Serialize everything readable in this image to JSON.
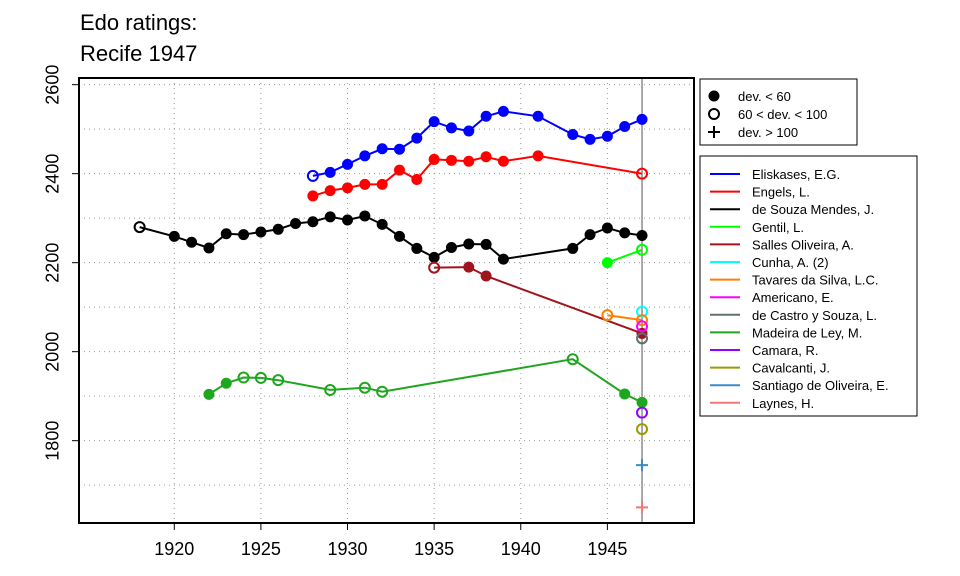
{
  "chart_data": {
    "type": "line",
    "title_lines": [
      "Edo ratings:",
      "Recife 1947"
    ],
    "xlabel": "",
    "ylabel": "",
    "xlim": [
      1914.5,
      1950
    ],
    "ylim": [
      1615,
      2615
    ],
    "x_ticks": [
      1920,
      1925,
      1930,
      1935,
      1940,
      1945
    ],
    "y_ticks": [
      1800,
      2000,
      2200,
      2400,
      2600
    ],
    "grid": true,
    "reference_line_x": 1947,
    "marker_legend": [
      {
        "label": "dev. < 60",
        "marker": "filled"
      },
      {
        "label": "60 < dev. < 100",
        "marker": "open"
      },
      {
        "label": "dev. > 100",
        "marker": "plus"
      }
    ],
    "legend_placement": "right",
    "series": [
      {
        "name": "Eliskases, E.G.",
        "color": "#0000FF",
        "points": [
          [
            1928,
            2395,
            "open"
          ],
          [
            1929,
            2403,
            "filled"
          ],
          [
            1930,
            2421,
            "filled"
          ],
          [
            1931,
            2440,
            "filled"
          ],
          [
            1932,
            2456,
            "filled"
          ],
          [
            1933,
            2455,
            "filled"
          ],
          [
            1934,
            2480,
            "filled"
          ],
          [
            1935,
            2517,
            "filled"
          ],
          [
            1936,
            2503,
            "filled"
          ],
          [
            1937,
            2496,
            "filled"
          ],
          [
            1938,
            2529,
            "filled"
          ],
          [
            1939,
            2540,
            "filled"
          ],
          [
            1941,
            2529,
            "filled"
          ],
          [
            1943,
            2488,
            "filled"
          ],
          [
            1944,
            2477,
            "filled"
          ],
          [
            1945,
            2484,
            "filled"
          ],
          [
            1946,
            2506,
            "filled"
          ],
          [
            1947,
            2522,
            "filled"
          ]
        ]
      },
      {
        "name": "Engels, L.",
        "color": "#FF0000",
        "points": [
          [
            1928,
            2350,
            "filled"
          ],
          [
            1929,
            2362,
            "filled"
          ],
          [
            1930,
            2368,
            "filled"
          ],
          [
            1931,
            2376,
            "filled"
          ],
          [
            1932,
            2376,
            "filled"
          ],
          [
            1933,
            2408,
            "filled"
          ],
          [
            1934,
            2387,
            "filled"
          ],
          [
            1935,
            2432,
            "filled"
          ],
          [
            1936,
            2430,
            "filled"
          ],
          [
            1937,
            2428,
            "filled"
          ],
          [
            1938,
            2438,
            "filled"
          ],
          [
            1939,
            2428,
            "filled"
          ],
          [
            1941,
            2440,
            "filled"
          ],
          [
            1947,
            2400,
            "open"
          ]
        ]
      },
      {
        "name": "de Souza Mendes, J.",
        "color": "#000000",
        "points": [
          [
            1918,
            2280,
            "open"
          ],
          [
            1920,
            2259,
            "filled"
          ],
          [
            1921,
            2246,
            "filled"
          ],
          [
            1922,
            2233,
            "filled"
          ],
          [
            1923,
            2265,
            "filled"
          ],
          [
            1924,
            2263,
            "filled"
          ],
          [
            1925,
            2269,
            "filled"
          ],
          [
            1926,
            2275,
            "filled"
          ],
          [
            1927,
            2288,
            "filled"
          ],
          [
            1928,
            2292,
            "filled"
          ],
          [
            1929,
            2303,
            "filled"
          ],
          [
            1930,
            2296,
            "filled"
          ],
          [
            1931,
            2305,
            "filled"
          ],
          [
            1932,
            2286,
            "filled"
          ],
          [
            1933,
            2259,
            "filled"
          ],
          [
            1934,
            2232,
            "filled"
          ],
          [
            1935,
            2212,
            "filled"
          ],
          [
            1936,
            2234,
            "filled"
          ],
          [
            1937,
            2242,
            "filled"
          ],
          [
            1938,
            2241,
            "filled"
          ],
          [
            1939,
            2208,
            "filled"
          ],
          [
            1943,
            2232,
            "filled"
          ],
          [
            1944,
            2263,
            "filled"
          ],
          [
            1945,
            2278,
            "filled"
          ],
          [
            1946,
            2267,
            "filled"
          ],
          [
            1947,
            2261,
            "filled"
          ]
        ]
      },
      {
        "name": "Gentil, L.",
        "color": "#00FF00",
        "points": [
          [
            1945,
            2200,
            "filled"
          ],
          [
            1947,
            2229,
            "open"
          ]
        ]
      },
      {
        "name": "Salles Oliveira, A.",
        "color": "#A0141E",
        "points": [
          [
            1935,
            2189,
            "open"
          ],
          [
            1937,
            2190,
            "filled"
          ],
          [
            1938,
            2170,
            "filled"
          ],
          [
            1947,
            2041,
            "filled"
          ]
        ]
      },
      {
        "name": "Cunha, A. (2)",
        "color": "#00FFFF",
        "points": [
          [
            1947,
            2090,
            "open"
          ]
        ]
      },
      {
        "name": "Tavares da Silva, L.C.",
        "color": "#FF7F00",
        "points": [
          [
            1945,
            2082,
            "open"
          ],
          [
            1947,
            2071,
            "open"
          ]
        ]
      },
      {
        "name": "Americano, E.",
        "color": "#FF00FF",
        "points": [
          [
            1947,
            2057,
            "open"
          ]
        ]
      },
      {
        "name": "de Castro y Souza, L.",
        "color": "#607070",
        "points": [
          [
            1947,
            2030,
            "open"
          ]
        ]
      },
      {
        "name": "Madeira de Ley, M.",
        "color": "#1FA61F",
        "points": [
          [
            1922,
            1904,
            "filled"
          ],
          [
            1923,
            1929,
            "filled"
          ],
          [
            1924,
            1942,
            "open"
          ],
          [
            1925,
            1941,
            "open"
          ],
          [
            1926,
            1936,
            "open"
          ],
          [
            1929,
            1914,
            "open"
          ],
          [
            1931,
            1919,
            "open"
          ],
          [
            1932,
            1910,
            "open"
          ],
          [
            1943,
            1983,
            "open"
          ],
          [
            1946,
            1905,
            "filled"
          ],
          [
            1947,
            1886,
            "filled"
          ]
        ]
      },
      {
        "name": "Camara, R.",
        "color": "#9400FF",
        "points": [
          [
            1947,
            1863,
            "open"
          ]
        ]
      },
      {
        "name": "Cavalcanti, J.",
        "color": "#9B9B00",
        "points": [
          [
            1947,
            1826,
            "open"
          ]
        ]
      },
      {
        "name": "Santiago de Oliveira, E.",
        "color": "#3A8CC8",
        "points": [
          [
            1947,
            1745,
            "plus"
          ]
        ]
      },
      {
        "name": "Laynes, H.",
        "color": "#F07878",
        "points": [
          [
            1947,
            1650,
            "plus"
          ]
        ]
      }
    ]
  }
}
